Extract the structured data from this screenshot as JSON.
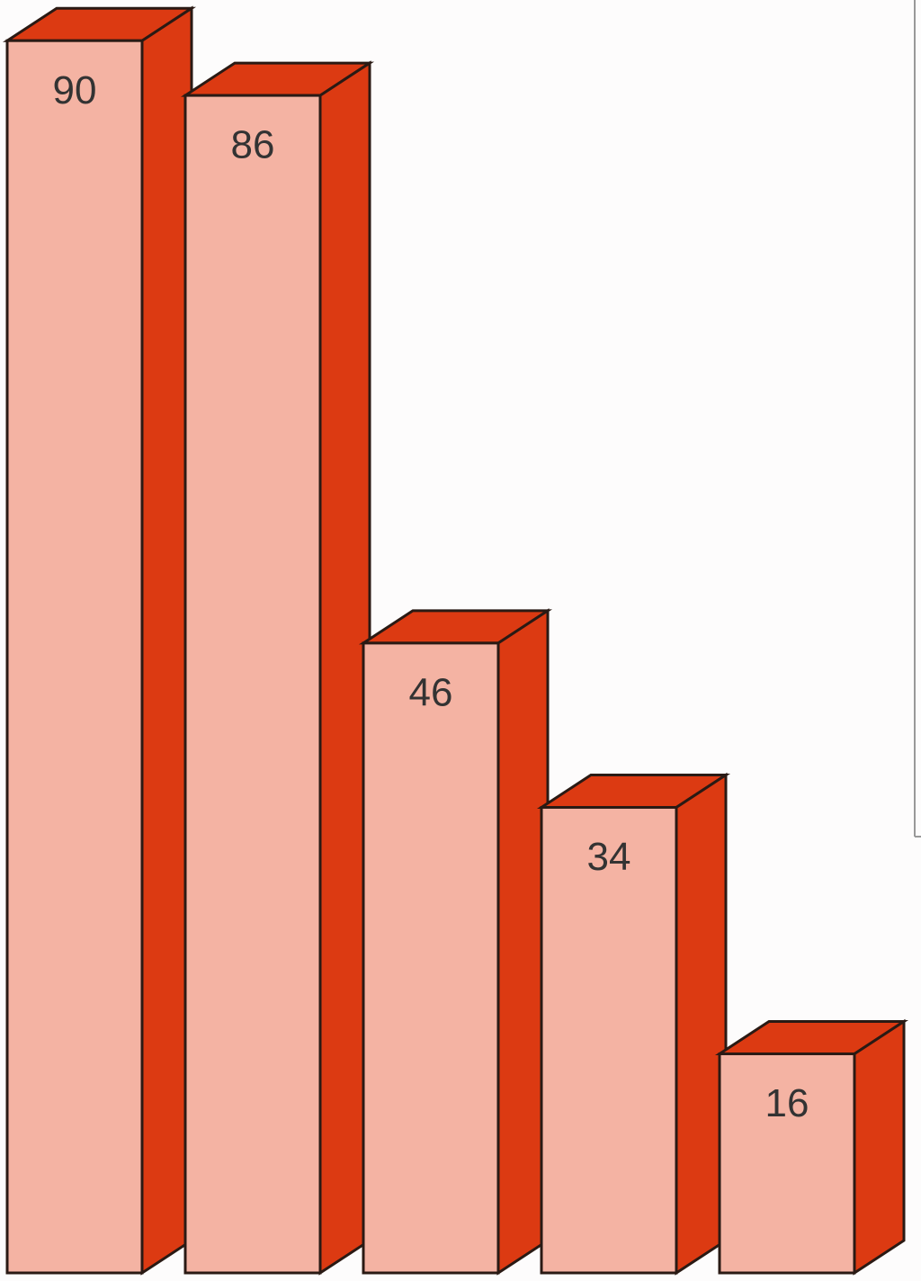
{
  "chart_data": {
    "type": "bar3d",
    "values": [
      90,
      86,
      46,
      34,
      16
    ],
    "color": "#f4b3a3",
    "side_color": "#dc3a12"
  }
}
